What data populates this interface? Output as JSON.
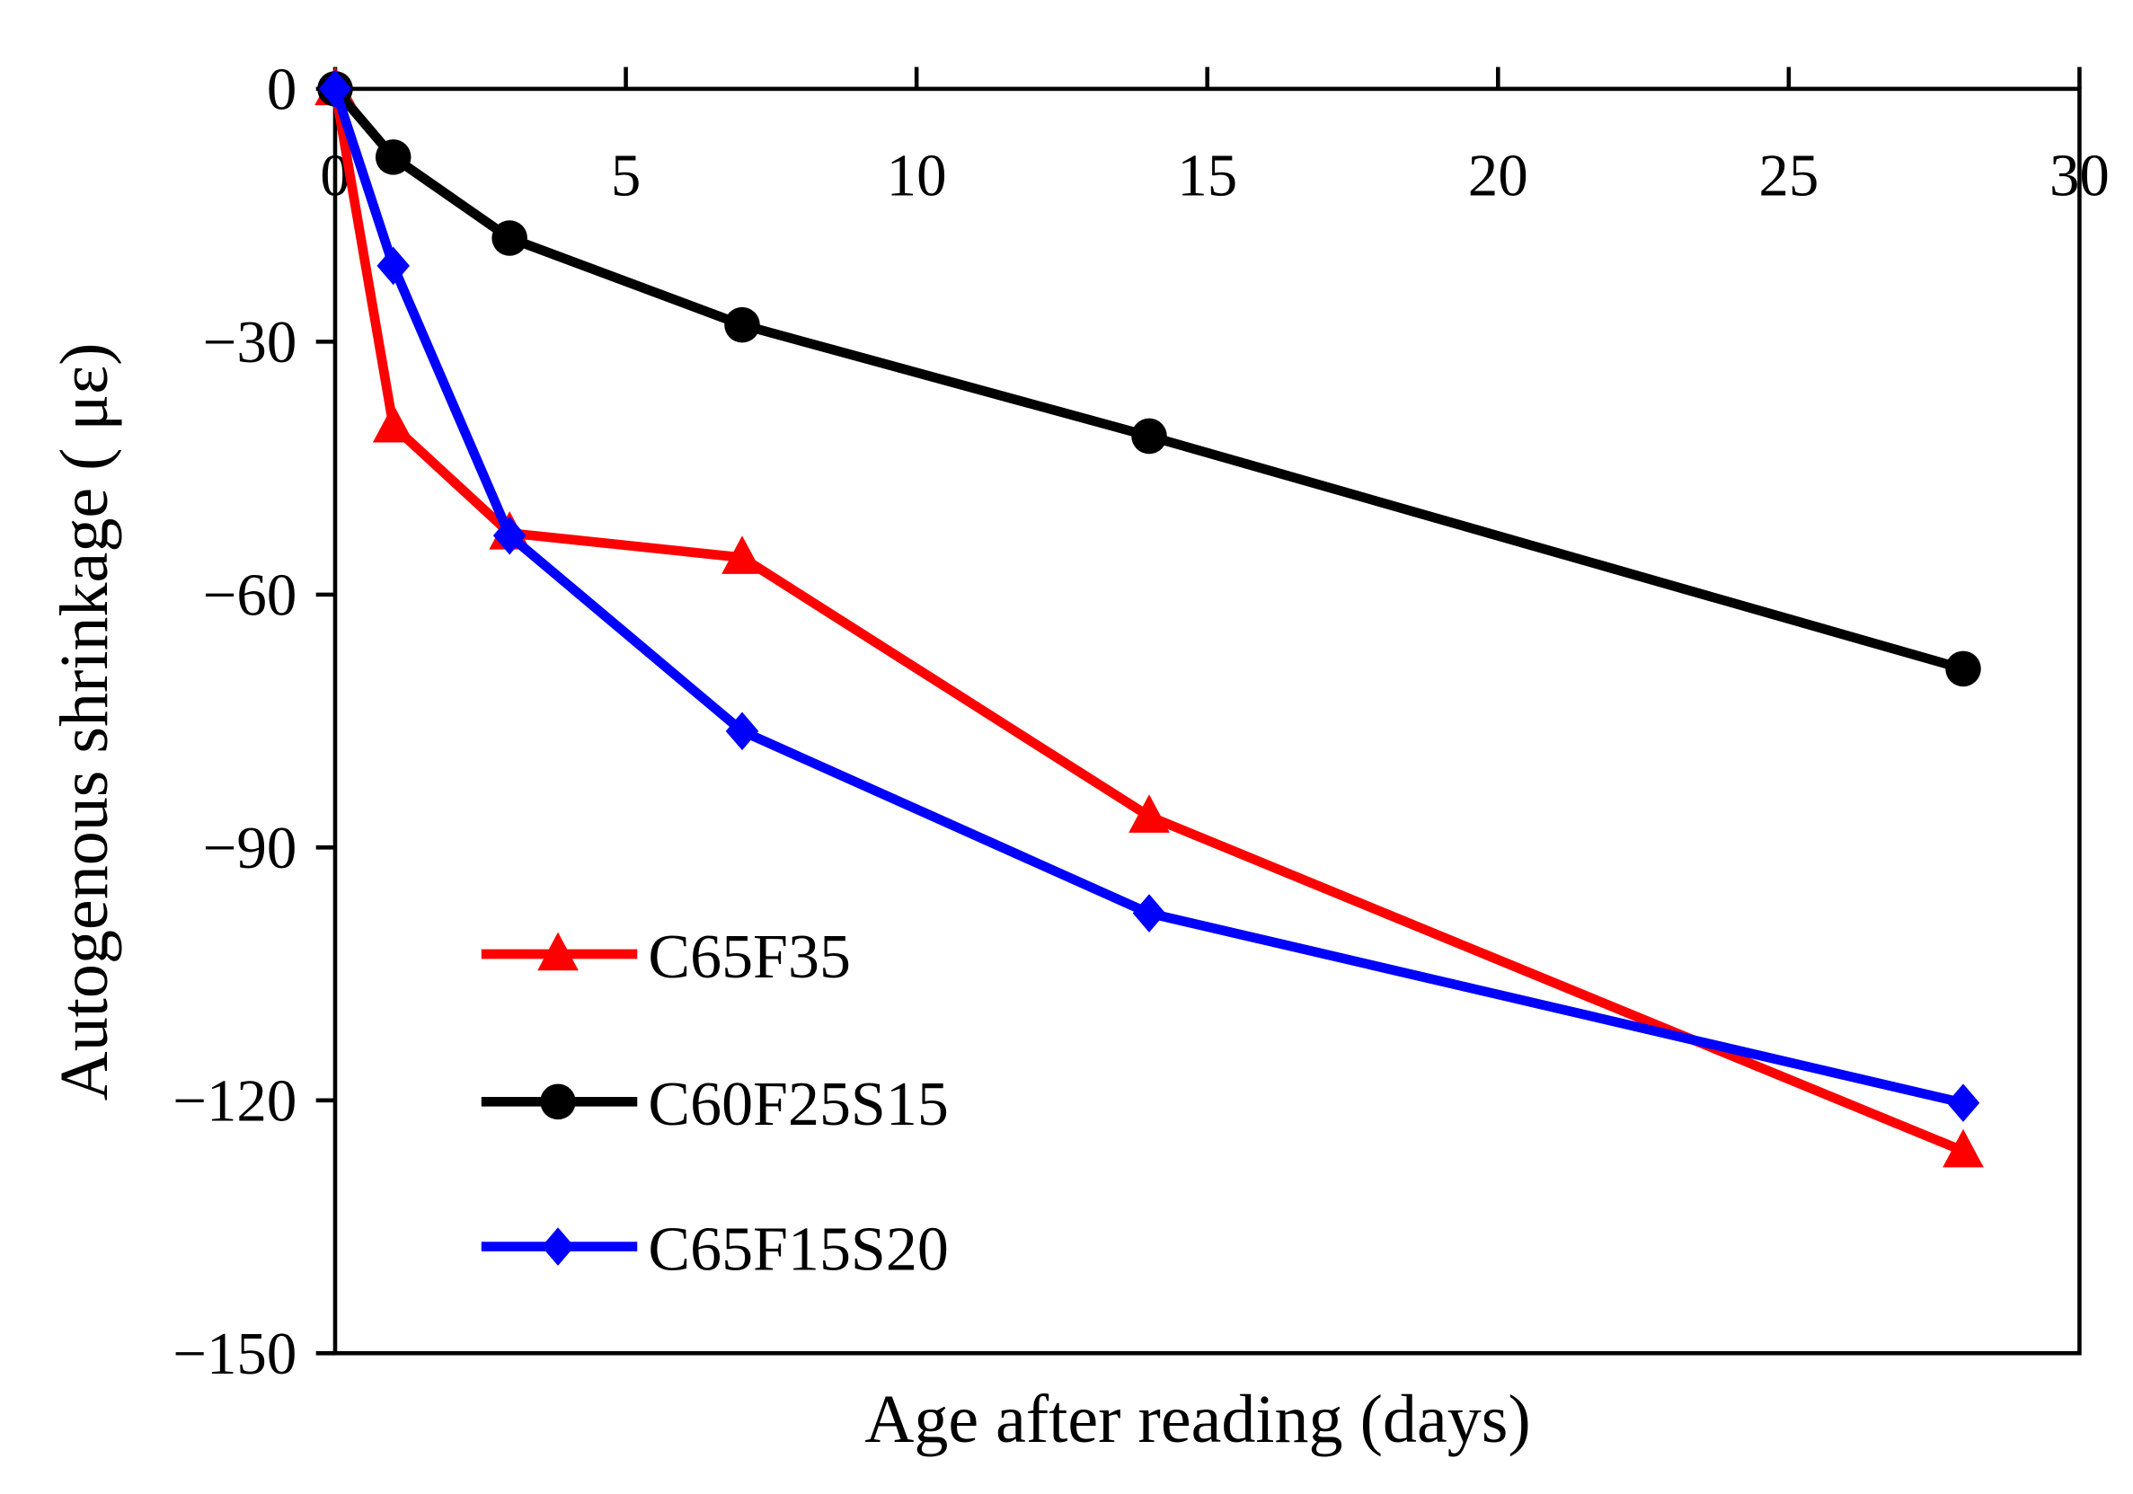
{
  "chart_data": {
    "type": "line",
    "title": "",
    "xlabel": "Age after reading (days)",
    "ylabel": "Autogenous shrinkage ( με)",
    "xlim": [
      0,
      30
    ],
    "ylim": [
      -150,
      0
    ],
    "xticks": [
      "0",
      "5",
      "10",
      "15",
      "20",
      "25",
      "30"
    ],
    "yticks": [
      "0",
      "−30",
      "−60",
      "−90",
      "−120",
      "−150"
    ],
    "x_axis_position": "top",
    "grid": false,
    "legend_position": "bottom-left",
    "x": [
      0,
      1,
      3,
      7,
      14,
      28
    ],
    "series": [
      {
        "name": "C65F35",
        "color": "#ff0000",
        "marker": "triangle",
        "values": [
          0,
          -40,
          -52.7,
          -55.6,
          -86.3,
          -126
        ]
      },
      {
        "name": "C60F25S15",
        "color": "#000000",
        "marker": "circle",
        "values": [
          0,
          -8.1,
          -17.7,
          -28,
          -41.2,
          -68.8
        ]
      },
      {
        "name": "C65F15S20",
        "color": "#0000ff",
        "marker": "diamond",
        "values": [
          0,
          -21,
          -53,
          -76.2,
          -97.8,
          -120.3
        ]
      }
    ]
  }
}
